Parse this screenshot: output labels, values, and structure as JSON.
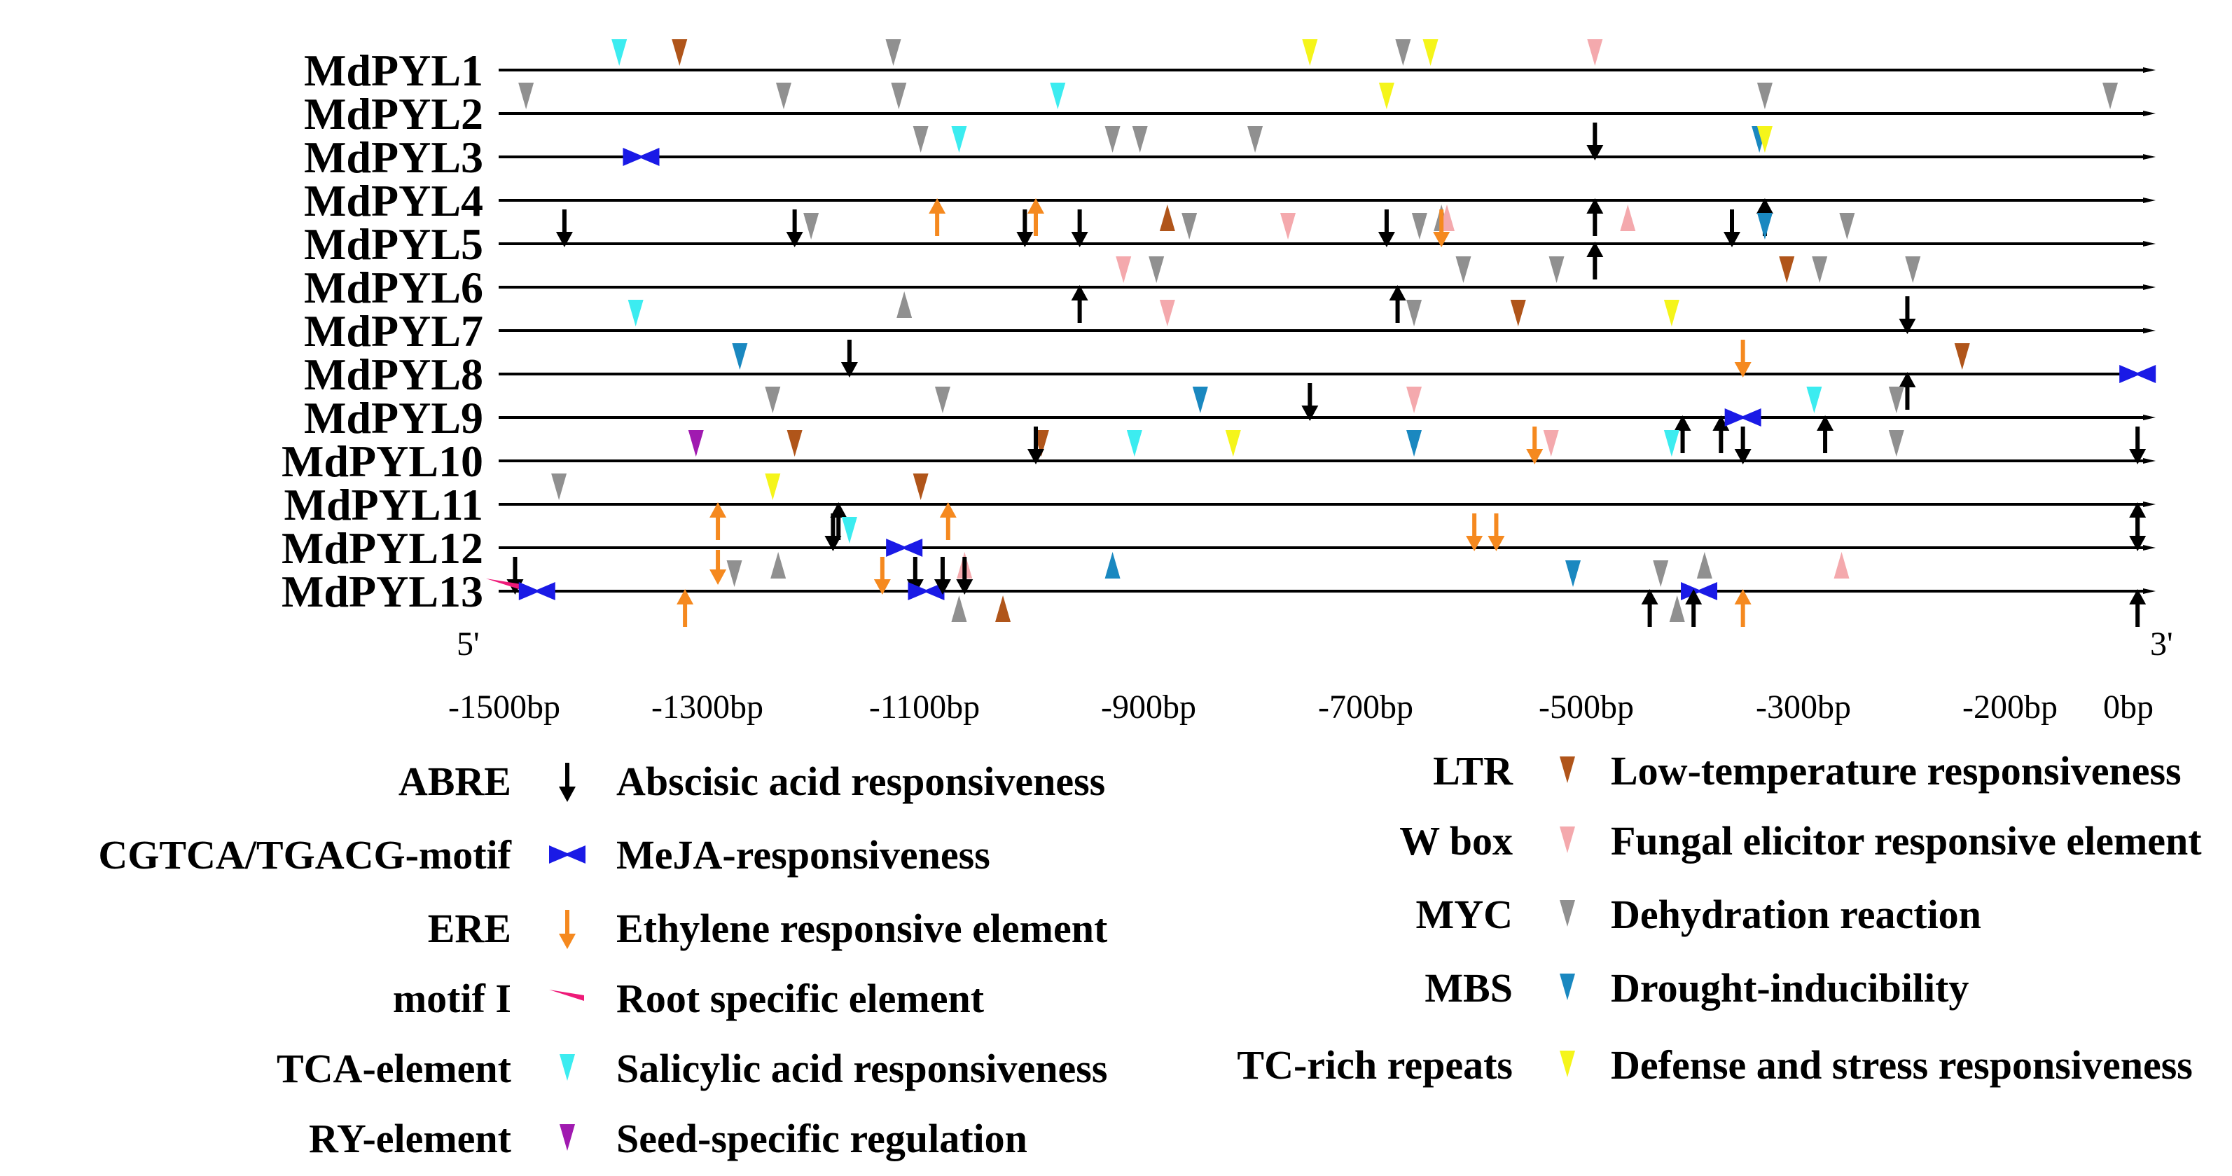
{
  "genes": [
    "MdPYL1",
    "MdPYL2",
    "MdPYL3",
    "MdPYL4",
    "MdPYL5",
    "MdPYL6",
    "MdPYL7",
    "MdPYL8",
    "MdPYL9",
    "MdPYL10",
    "MdPYL11",
    "MdPYL12",
    "MdPYL13"
  ],
  "axis": {
    "end5": "5'",
    "end3": "3'",
    "ticks": [
      "-1500bp",
      "-1300bp",
      "-1100bp",
      "-900bp",
      "-700bp",
      "-500bp",
      "-300bp",
      "-200bp",
      "0bp"
    ]
  },
  "colors": {
    "ABRE": "#000000",
    "CGTCA": "#1a1ae6",
    "ERE": "#f5891f",
    "motifI": "#ee1a78",
    "TCA": "#3cecf0",
    "RY": "#a01ab0",
    "LTR": "#b0551a",
    "Wbox": "#f4a9ad",
    "MYC": "#909090",
    "MBS": "#1a88c0",
    "TC": "#f5f51a"
  },
  "legend_left": [
    {
      "key": "ABRE",
      "label": "ABRE",
      "desc": "Abscisic acid responsiveness",
      "glyph": "arrow-down"
    },
    {
      "key": "CGTCA",
      "label": "CGTCA/TGACG-motif",
      "desc": "MeJA-responsiveness",
      "glyph": "bowtie"
    },
    {
      "key": "ERE",
      "label": "ERE",
      "desc": "Ethylene responsive element",
      "glyph": "arrow-down"
    },
    {
      "key": "motifI",
      "label": "motif I",
      "desc": "Root specific element",
      "glyph": "wedge"
    },
    {
      "key": "TCA",
      "label": "TCA-element",
      "desc": "Salicylic acid responsiveness",
      "glyph": "tri-down"
    },
    {
      "key": "RY",
      "label": "RY-element",
      "desc": "Seed-specific regulation",
      "glyph": "tri-down"
    }
  ],
  "legend_right": [
    {
      "key": "LTR",
      "label": "LTR",
      "desc": "Low-temperature responsiveness",
      "glyph": "tri-down"
    },
    {
      "key": "Wbox",
      "label": "W box",
      "desc": "Fungal elicitor responsive element",
      "glyph": "tri-down"
    },
    {
      "key": "MYC",
      "label": "MYC",
      "desc": "Dehydration reaction",
      "glyph": "tri-down"
    },
    {
      "key": "MBS",
      "label": "MBS",
      "desc": "Drought-inducibility",
      "glyph": "tri-down"
    },
    {
      "key": "TC",
      "label": "TC-rich repeats",
      "desc": "Defense and stress responsiveness",
      "glyph": "tri-down"
    }
  ],
  "elements": [
    [
      [
        "TCA",
        -1390,
        "a"
      ],
      [
        "LTR",
        -1335,
        "a"
      ],
      [
        "MYC",
        -1140,
        "a"
      ],
      [
        "TC",
        -760,
        "a"
      ],
      [
        "MYC",
        -675,
        "a"
      ],
      [
        "TC",
        -650,
        "a"
      ],
      [
        "Wbox",
        -500,
        "a"
      ]
    ],
    [
      [
        "MYC",
        -1475,
        "a"
      ],
      [
        "MYC",
        -1240,
        "a"
      ],
      [
        "MYC",
        -1135,
        "a"
      ],
      [
        "TCA",
        -990,
        "a"
      ],
      [
        "TC",
        -690,
        "a"
      ],
      [
        "MYC",
        -345,
        "a"
      ],
      [
        "MYC",
        -30,
        "a"
      ]
    ],
    [
      [
        "CGTCA",
        -1370,
        "o"
      ],
      [
        "MYC",
        -1115,
        "a"
      ],
      [
        "TCA",
        -1080,
        "a"
      ],
      [
        "MYC",
        -940,
        "a"
      ],
      [
        "MYC",
        -915,
        "a"
      ],
      [
        "MYC",
        -810,
        "a"
      ],
      [
        "ABRE",
        -500,
        "a"
      ],
      [
        "MBS",
        -350,
        "a"
      ],
      [
        "TC",
        -345,
        "a"
      ]
    ],
    [
      [
        "ERE",
        -1100,
        "bu"
      ],
      [
        "ERE",
        -1010,
        "bu"
      ],
      [
        "LTR",
        -890,
        "b"
      ],
      [
        "MYC",
        -640,
        "b"
      ],
      [
        "Wbox",
        -635,
        "b"
      ],
      [
        "ABRE",
        -500,
        "bu"
      ],
      [
        "Wbox",
        -470,
        "b"
      ],
      [
        "ABRE",
        -345,
        "bu"
      ]
    ],
    [
      [
        "ABRE",
        -1440,
        "a"
      ],
      [
        "ABRE",
        -1230,
        "a"
      ],
      [
        "MYC",
        -1215,
        "a"
      ],
      [
        "ABRE",
        -1020,
        "a"
      ],
      [
        "ABRE",
        -970,
        "a"
      ],
      [
        "MYC",
        -870,
        "a"
      ],
      [
        "Wbox",
        -780,
        "a"
      ],
      [
        "ABRE",
        -690,
        "a"
      ],
      [
        "MYC",
        -660,
        "a"
      ],
      [
        "ERE",
        -640,
        "a"
      ],
      [
        "ABRE",
        -500,
        "bu"
      ],
      [
        "ABRE",
        -375,
        "a"
      ],
      [
        "MBS",
        -345,
        "a"
      ],
      [
        "MYC",
        -270,
        "a"
      ]
    ],
    [
      [
        "ABRE",
        -970,
        "bu"
      ],
      [
        "Wbox",
        -930,
        "a"
      ],
      [
        "MYC",
        -900,
        "a"
      ],
      [
        "ABRE",
        -680,
        "bu"
      ],
      [
        "MYC",
        -620,
        "a"
      ],
      [
        "MYC",
        -535,
        "a"
      ],
      [
        "LTR",
        -325,
        "a"
      ],
      [
        "MYC",
        -295,
        "a"
      ],
      [
        "MYC",
        -210,
        "a"
      ],
      [
        "MYC",
        -1130,
        "b"
      ]
    ],
    [
      [
        "TCA",
        -1375,
        "a"
      ],
      [
        "Wbox",
        -890,
        "a"
      ],
      [
        "MYC",
        -665,
        "a"
      ],
      [
        "LTR",
        -570,
        "a"
      ],
      [
        "TC",
        -430,
        "a"
      ],
      [
        "ABRE",
        -215,
        "a"
      ]
    ],
    [
      [
        "MBS",
        -1280,
        "a"
      ],
      [
        "ABRE",
        -1180,
        "a"
      ],
      [
        "ERE",
        -365,
        "a"
      ],
      [
        "ABRE",
        -215,
        "bu"
      ],
      [
        "LTR",
        -165,
        "a"
      ],
      [
        "CGTCA",
        -5,
        "o"
      ]
    ],
    [
      [
        "MYC",
        -1250,
        "a"
      ],
      [
        "MYC",
        -1095,
        "a"
      ],
      [
        "MBS",
        -860,
        "a"
      ],
      [
        "ABRE",
        -760,
        "a"
      ],
      [
        "Wbox",
        -665,
        "a"
      ],
      [
        "ABRE",
        -420,
        "bu"
      ],
      [
        "ABRE",
        -385,
        "bu"
      ],
      [
        "CGTCA",
        -365,
        "o"
      ],
      [
        "TCA",
        -300,
        "a"
      ],
      [
        "ABRE",
        -290,
        "bu"
      ],
      [
        "MYC",
        -225,
        "a"
      ]
    ],
    [
      [
        "RY",
        -1320,
        "a"
      ],
      [
        "LTR",
        -1230,
        "a"
      ],
      [
        "LTR",
        -1005,
        "a"
      ],
      [
        "ABRE",
        -1010,
        "a"
      ],
      [
        "TCA",
        -920,
        "a"
      ],
      [
        "TC",
        -830,
        "a"
      ],
      [
        "MBS",
        -665,
        "a"
      ],
      [
        "ERE",
        -555,
        "a"
      ],
      [
        "Wbox",
        -540,
        "a"
      ],
      [
        "TCA",
        -430,
        "a"
      ],
      [
        "ABRE",
        -365,
        "a"
      ],
      [
        "MYC",
        -225,
        "a"
      ],
      [
        "ABRE",
        -5,
        "a"
      ]
    ],
    [
      [
        "MYC",
        -1445,
        "a"
      ],
      [
        "ERE",
        -1300,
        "bu"
      ],
      [
        "TC",
        -1250,
        "a"
      ],
      [
        "ABRE",
        -1190,
        "bu"
      ],
      [
        "LTR",
        -1115,
        "a"
      ],
      [
        "ERE",
        -1090,
        "bu"
      ],
      [
        "ABRE",
        -5,
        "bu"
      ]
    ],
    [
      [
        "ERE",
        -1300,
        "b"
      ],
      [
        "MYC",
        -1245,
        "b"
      ],
      [
        "ABRE",
        -1195,
        "a"
      ],
      [
        "TCA",
        -1180,
        "a"
      ],
      [
        "CGTCA",
        -1130,
        "o"
      ],
      [
        "Wbox",
        -1075,
        "b"
      ],
      [
        "MBS",
        -940,
        "b"
      ],
      [
        "ERE",
        -610,
        "a"
      ],
      [
        "ERE",
        -590,
        "a"
      ],
      [
        "MYC",
        -400,
        "b"
      ],
      [
        "Wbox",
        -275,
        "b"
      ],
      [
        "ABRE",
        -5,
        "a"
      ]
    ],
    [
      [
        "ABRE",
        -1485,
        "a"
      ],
      [
        "motifI",
        -1495,
        "o"
      ],
      [
        "CGTCA",
        -1465,
        "o"
      ],
      [
        "ERE",
        -1330,
        "bu"
      ],
      [
        "MYC",
        -1285,
        "a"
      ],
      [
        "ERE",
        -1150,
        "a"
      ],
      [
        "ABRE",
        -1120,
        "a"
      ],
      [
        "CGTCA",
        -1110,
        "o"
      ],
      [
        "ABRE",
        -1095,
        "a"
      ],
      [
        "ABRE",
        -1075,
        "a"
      ],
      [
        "MYC",
        -1080,
        "b"
      ],
      [
        "LTR",
        -1040,
        "b"
      ],
      [
        "MBS",
        -520,
        "a"
      ],
      [
        "ABRE",
        -450,
        "bu"
      ],
      [
        "MYC",
        -440,
        "a"
      ],
      [
        "MYC",
        -425,
        "b"
      ],
      [
        "CGTCA",
        -405,
        "o"
      ],
      [
        "ABRE",
        -410,
        "bu"
      ],
      [
        "ERE",
        -365,
        "bu"
      ],
      [
        "ABRE",
        -5,
        "bu"
      ]
    ]
  ]
}
